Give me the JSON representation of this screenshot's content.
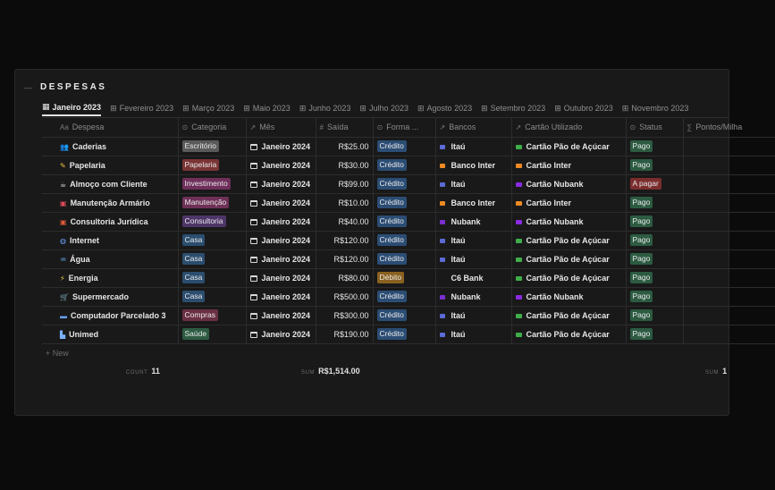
{
  "database": {
    "title": "DESPESAS",
    "collapse_icon": "toggle-icon"
  },
  "tabs": [
    {
      "label": "Janeiro 2023",
      "active": true,
      "icon": "gallery-icon"
    },
    {
      "label": "Fevereiro 2023",
      "icon": "table-icon"
    },
    {
      "label": "Março 2023",
      "icon": "table-icon"
    },
    {
      "label": "Maio 2023",
      "icon": "table-icon"
    },
    {
      "label": "Junho 2023",
      "icon": "table-icon"
    },
    {
      "label": "Julho 2023",
      "icon": "table-icon"
    },
    {
      "label": "Agosto 2023",
      "icon": "table-icon"
    },
    {
      "label": "Setembro 2023",
      "icon": "table-icon"
    },
    {
      "label": "Outubro 2023",
      "icon": "table-icon"
    },
    {
      "label": "Novembro 2023",
      "icon": "table-icon"
    }
  ],
  "columns": {
    "despesa": "Despesa",
    "categoria": "Categoria",
    "mes": "Mês",
    "saida": "Saída",
    "forma": "Forma ...",
    "bancos": "Bancos",
    "cartao": "Cartão Utilizado",
    "status": "Status",
    "pontos": "Pontos/Milha"
  },
  "rows": [
    {
      "icon": "people-icon",
      "despesa": "Caderias",
      "categoria": "Escritório",
      "mes": "Janeiro 2024",
      "saida": "R$25.00",
      "forma": "Crédito",
      "banco": "Itaú",
      "cartao": "Cartão Pão de Açúcar",
      "status": "Pago"
    },
    {
      "icon": "pencil-icon",
      "despesa": "Papelaria",
      "categoria": "Papelaria",
      "mes": "Janeiro 2024",
      "saida": "R$30.00",
      "forma": "Crédito",
      "banco": "Banco Inter",
      "cartao": "Cartão Inter",
      "status": "Pago"
    },
    {
      "icon": "coffee-icon",
      "despesa": "Almoço com Cliente",
      "categoria": "Investimento",
      "mes": "Janeiro 2024",
      "saida": "R$99.00",
      "forma": "Crédito",
      "banco": "Itaú",
      "cartao": "Cartão Nubank",
      "status": "A pagar"
    },
    {
      "icon": "toolbox-icon",
      "despesa": "Manutenção Armário",
      "categoria": "Manutenção",
      "mes": "Janeiro 2024",
      "saida": "R$10.00",
      "forma": "Crédito",
      "banco": "Banco Inter",
      "cartao": "Cartão Inter",
      "status": "Pago"
    },
    {
      "icon": "briefcase-icon",
      "despesa": "Consultoria Jurídica",
      "categoria": "Consultoria",
      "mes": "Janeiro 2024",
      "saida": "R$40.00",
      "forma": "Crédito",
      "banco": "Nubank",
      "cartao": "Cartão Nubank",
      "status": "Pago"
    },
    {
      "icon": "globe-icon",
      "despesa": "Internet",
      "categoria": "Casa",
      "mes": "Janeiro 2024",
      "saida": "R$120.00",
      "forma": "Crédito",
      "banco": "Itaú",
      "cartao": "Cartão Pão de Açúcar",
      "status": "Pago"
    },
    {
      "icon": "water-icon",
      "despesa": "Água",
      "categoria": "Casa",
      "mes": "Janeiro 2024",
      "saida": "R$120.00",
      "forma": "Crédito",
      "banco": "Itaú",
      "cartao": "Cartão Pão de Açúcar",
      "status": "Pago"
    },
    {
      "icon": "bolt-icon",
      "despesa": "Energia",
      "categoria": "Casa",
      "mes": "Janeiro 2024",
      "saida": "R$80.00",
      "forma": "Débito",
      "banco": "C6 Bank",
      "cartao": "Cartão Pão de Açúcar",
      "status": "Pago"
    },
    {
      "icon": "cart-icon",
      "despesa": "Supermercado",
      "categoria": "Casa",
      "mes": "Janeiro 2024",
      "saida": "R$500.00",
      "forma": "Crédito",
      "banco": "Nubank",
      "cartao": "Cartão Nubank",
      "status": "Pago"
    },
    {
      "icon": "laptop-icon",
      "despesa": "Computador Parcelado 3",
      "categoria": "Compras",
      "mes": "Janeiro 2024",
      "saida": "R$300.00",
      "forma": "Crédito",
      "banco": "Itaú",
      "cartao": "Cartão Pão de Açúcar",
      "status": "Pago"
    },
    {
      "icon": "hospital-icon",
      "despesa": "Unimed",
      "categoria": "Saúde",
      "mes": "Janeiro 2024",
      "saida": "R$190.00",
      "forma": "Crédito",
      "banco": "Itaú",
      "cartao": "Cartão Pão de Açúcar",
      "status": "Pago"
    }
  ],
  "new_row_label": "+ New",
  "footer": {
    "count_label": "COUNT",
    "count_value": "11",
    "sum_label": "SUM",
    "sum_value": "R$1,514.00",
    "sum2_label": "SUM",
    "sum2_value": "1"
  },
  "colors": {
    "category": {
      "Escritório": "#5a5a5a",
      "Papelaria": "#7a3535",
      "Investimento": "#6f2f5b",
      "Manutenção": "#6e3057",
      "Consultoria": "#4d3568",
      "Casa": "#2b4d6e",
      "Compras": "#6b2f44",
      "Saúde": "#2c5b42"
    },
    "forma": {
      "Crédito": "#2b4d74",
      "Débito": "#8a6220"
    },
    "status": {
      "Pago": "#2c5b42",
      "A pagar": "#7b2d2d"
    },
    "bank": {
      "Itaú": "#5b6bd6",
      "Banco Inter": "#f08a24",
      "Nubank": "#7b2fd0",
      "C6 Bank": "#1a1a1a"
    },
    "card": {
      "Cartão Pão de Açúcar": "#3fae4a",
      "Cartão Inter": "#f08a24",
      "Cartão Nubank": "#8a2be2"
    }
  }
}
